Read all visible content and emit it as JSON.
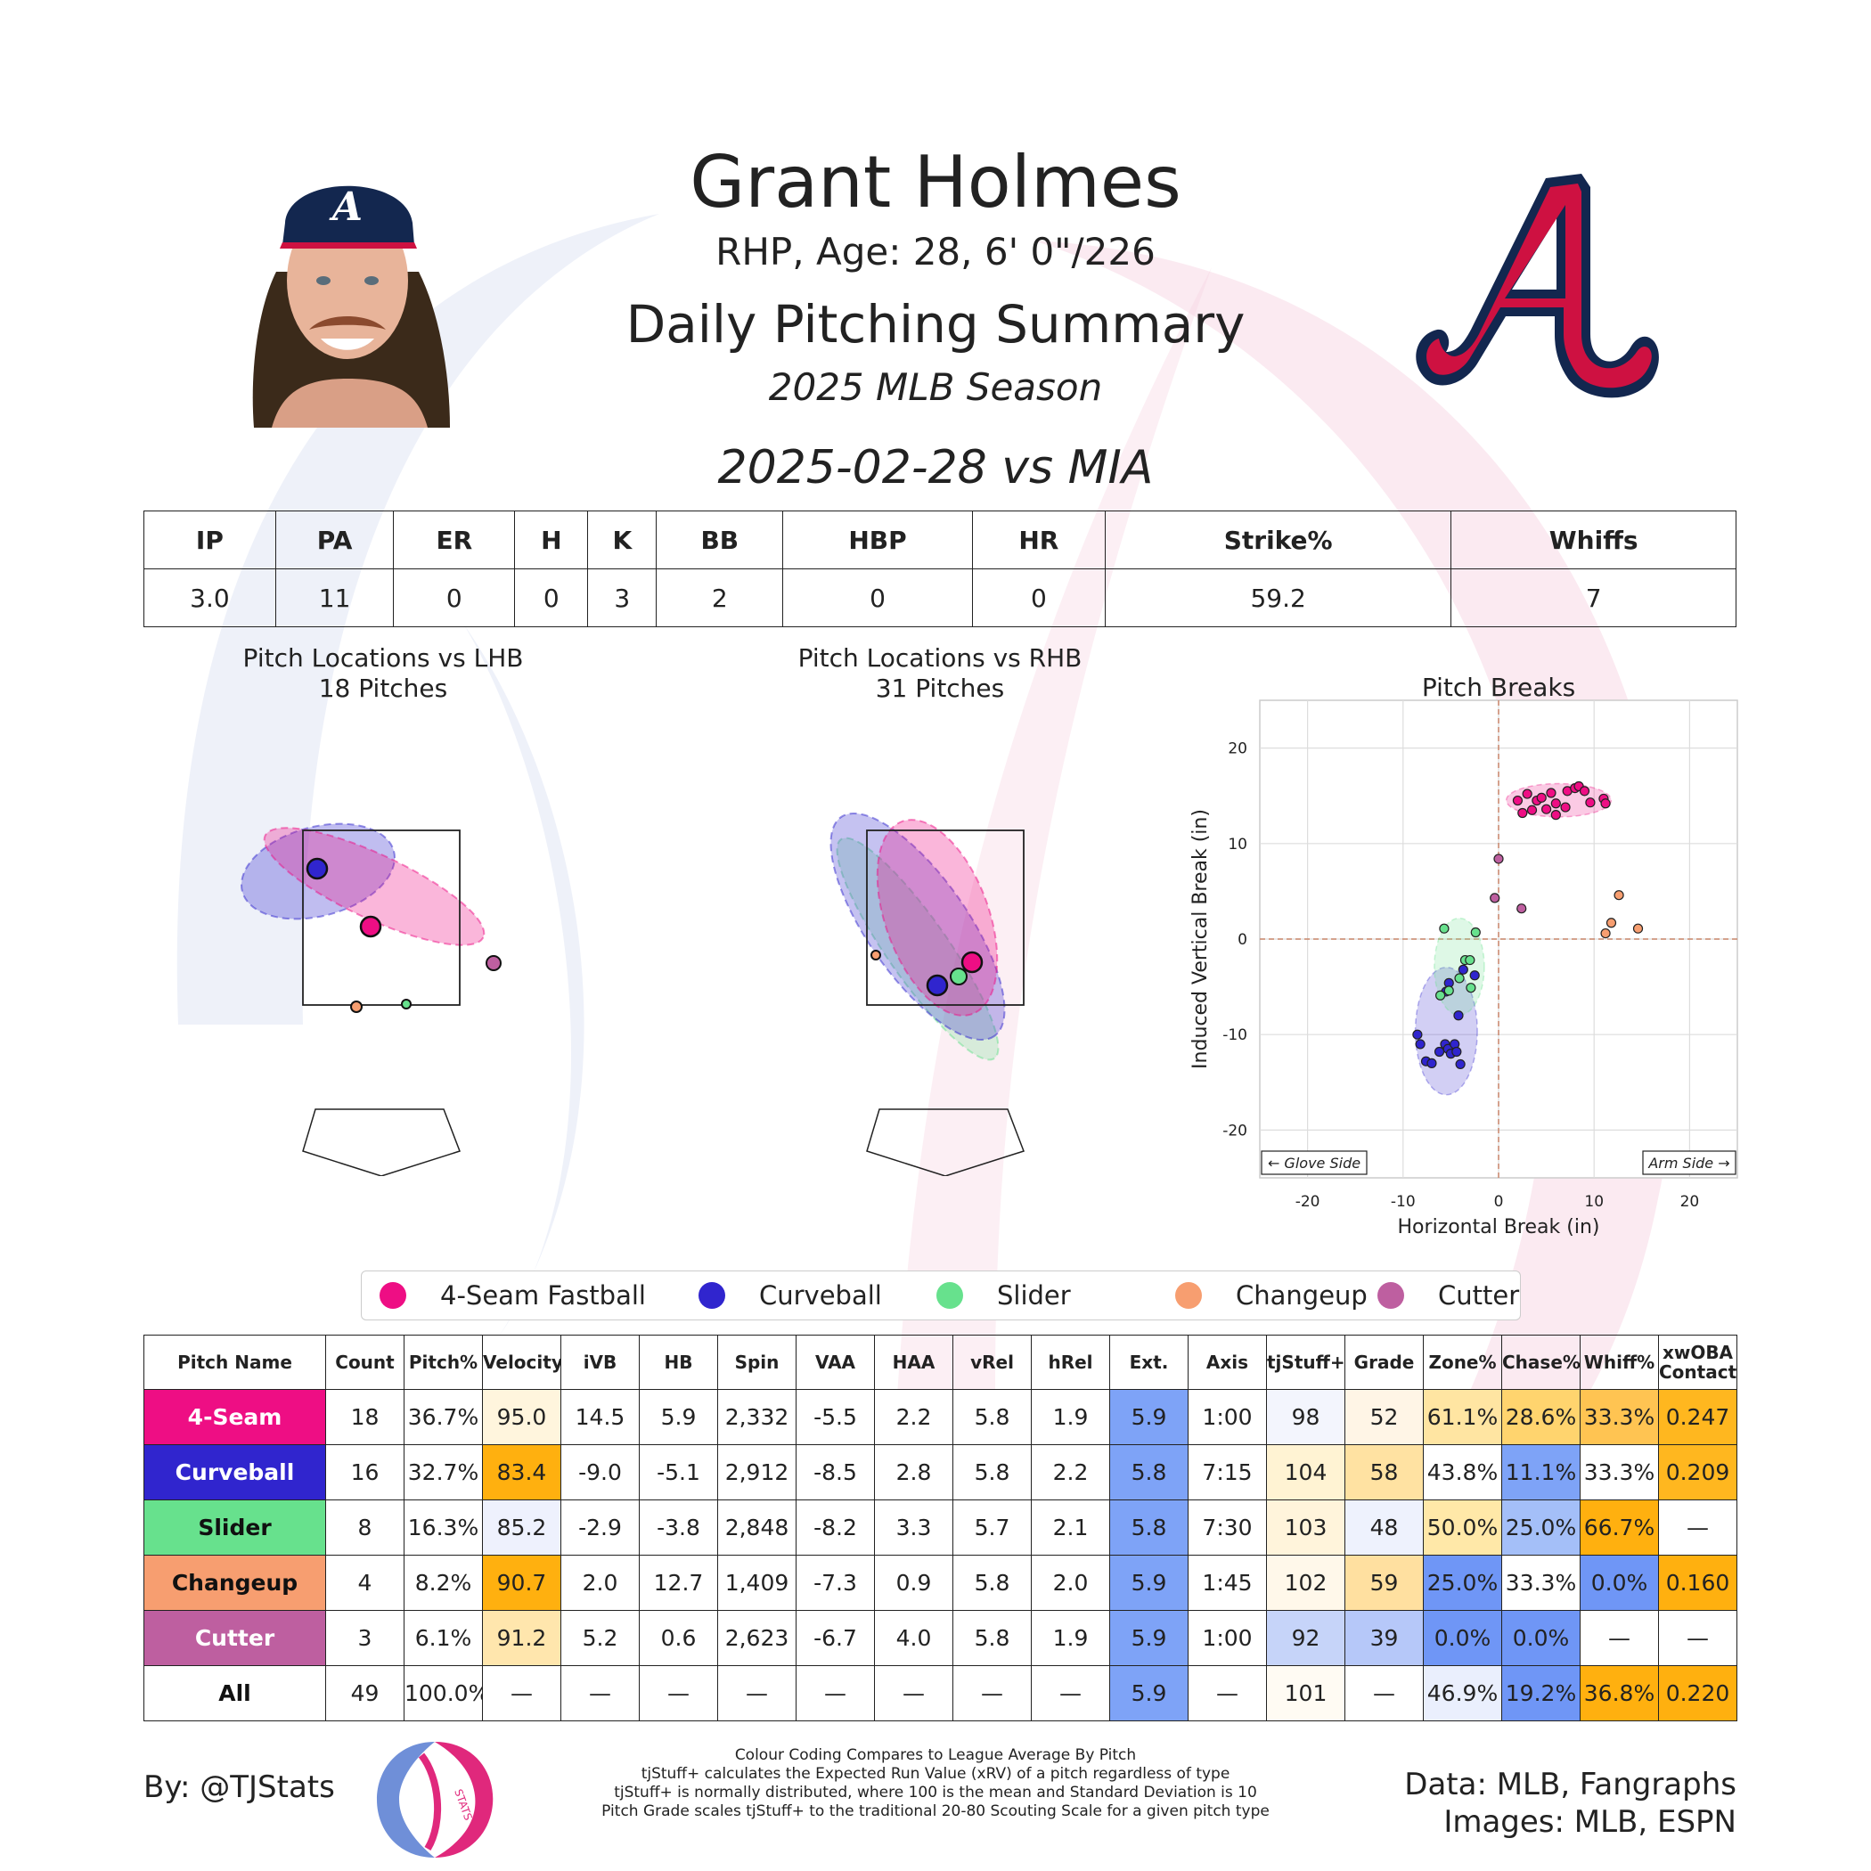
{
  "header": {
    "name": "Grant Holmes",
    "bio": "RHP, Age: 28, 6' 0\"/226",
    "subtitle": "Daily Pitching Summary",
    "season": "2025 MLB Season",
    "game": "2025-02-28 vs MIA"
  },
  "colors": {
    "fastball": "#ee0e84",
    "curveball": "#3025ce",
    "slider": "#67e18d",
    "changeup": "#f79e70",
    "cutter": "#be5fa0",
    "braves_red": "#ce1141",
    "braves_navy": "#13274f"
  },
  "stat_line": {
    "headers": [
      "IP",
      "PA",
      "ER",
      "H",
      "K",
      "BB",
      "HBP",
      "HR",
      "Strike%",
      "Whiffs"
    ],
    "values": [
      "3.0",
      "11",
      "0",
      "0",
      "3",
      "2",
      "0",
      "0",
      "59.2",
      "7"
    ]
  },
  "plots": {
    "lhb_title": "Pitch Locations vs LHB",
    "lhb_count": "18 Pitches",
    "rhb_title": "Pitch Locations vs RHB",
    "rhb_count": "31 Pitches",
    "breaks_title": "Pitch Breaks"
  },
  "chart_data": {
    "type": "scatter",
    "title": "Pitch Breaks",
    "xlabel": "Horizontal Break (in)",
    "ylabel": "Induced Vertical Break (in)",
    "xlim": [
      -25,
      25
    ],
    "ylim": [
      -25,
      25
    ],
    "xticks": [
      -20,
      -10,
      0,
      10,
      20
    ],
    "yticks": [
      -20,
      -10,
      0,
      10,
      20
    ],
    "grid": true,
    "annotations": [
      "← Glove Side",
      "Arm Side →"
    ],
    "series": [
      {
        "name": "4-Seam Fastball",
        "color": "#ee0e84",
        "points": [
          [
            2,
            14.5
          ],
          [
            2.5,
            13.2
          ],
          [
            3,
            15.2
          ],
          [
            3.5,
            13.5
          ],
          [
            4,
            14.5
          ],
          [
            4.5,
            14.8
          ],
          [
            5,
            13.6
          ],
          [
            5.5,
            15.3
          ],
          [
            6,
            14.2
          ],
          [
            6,
            13.0
          ],
          [
            7,
            13.8
          ],
          [
            7.2,
            15.5
          ],
          [
            8,
            15.8
          ],
          [
            8.4,
            16.0
          ],
          [
            9,
            15.5
          ],
          [
            9.6,
            14.3
          ],
          [
            11,
            14.7
          ],
          [
            11.2,
            14.2
          ]
        ]
      },
      {
        "name": "Curveball",
        "color": "#3025ce",
        "points": [
          [
            -8.5,
            -10
          ],
          [
            -8.2,
            -11
          ],
          [
            -7.6,
            -12.8
          ],
          [
            -7,
            -13
          ],
          [
            -6.2,
            -11.8
          ],
          [
            -5.6,
            -11
          ],
          [
            -5.3,
            -11.5
          ],
          [
            -5,
            -12
          ],
          [
            -4.6,
            -11
          ],
          [
            -4.4,
            -11.8
          ],
          [
            -4,
            -13.1
          ],
          [
            -5.5,
            -5.5
          ],
          [
            -5.2,
            -4.6
          ],
          [
            -4.2,
            -8
          ],
          [
            -3.7,
            -3.2
          ],
          [
            -2.5,
            -3.8
          ]
        ]
      },
      {
        "name": "Slider",
        "color": "#67e18d",
        "points": [
          [
            -5.7,
            1.1
          ],
          [
            -6.1,
            -5.9
          ],
          [
            -5.2,
            -5.4
          ],
          [
            -4.1,
            -4.1
          ],
          [
            -3.5,
            -2.2
          ],
          [
            -3,
            -2.2
          ],
          [
            -2.9,
            -5.1
          ],
          [
            -2.4,
            0.7
          ]
        ]
      },
      {
        "name": "Changeup",
        "color": "#f79e70",
        "points": [
          [
            11.2,
            0.6
          ],
          [
            11.8,
            1.7
          ],
          [
            12.6,
            4.6
          ],
          [
            14.6,
            1.1
          ]
        ]
      },
      {
        "name": "Cutter",
        "color": "#be5fa0",
        "points": [
          [
            -0.4,
            4.3
          ],
          [
            0,
            8.4
          ],
          [
            2.4,
            3.2
          ]
        ]
      }
    ]
  },
  "legend": [
    "4-Seam Fastball",
    "Curveball",
    "Slider",
    "Changeup",
    "Cutter"
  ],
  "pitch_table": {
    "headers": [
      "Pitch Name",
      "Count",
      "Pitch%",
      "Velocity",
      "iVB",
      "HB",
      "Spin",
      "VAA",
      "HAA",
      "vRel",
      "hRel",
      "Ext.",
      "Axis",
      "tjStuff+",
      "Grade",
      "Zone%",
      "Chase%",
      "Whiff%",
      "xwOBA Contact"
    ],
    "rows": [
      {
        "name": "4-Seam",
        "bg": "#ee0e84",
        "fg": "#ffffff",
        "cells": [
          "18",
          "36.7%",
          "95.0",
          "14.5",
          "5.9",
          "2,332",
          "-5.5",
          "2.2",
          "5.8",
          "1.9",
          "5.9",
          "1:00",
          "98",
          "52",
          "61.1%",
          "28.6%",
          "33.3%",
          "0.247"
        ],
        "cell_bg": [
          "#fff",
          "#fff",
          "#fff5dd",
          "#fff",
          "#fff",
          "#fff",
          "#fff",
          "#fff",
          "#fff",
          "#fff",
          "#7ea3f7",
          "#fff",
          "#f3f5fd",
          "#fff5e6",
          "#ffe5a2",
          "#ffd46e",
          "#ffc452",
          "#ffb71f"
        ]
      },
      {
        "name": "Curveball",
        "bg": "#3025ce",
        "fg": "#ffffff",
        "cells": [
          "16",
          "32.7%",
          "83.4",
          "-9.0",
          "-5.1",
          "2,912",
          "-8.5",
          "2.8",
          "5.8",
          "2.2",
          "5.8",
          "7:15",
          "104",
          "58",
          "43.8%",
          "11.1%",
          "33.3%",
          "0.209"
        ],
        "cell_bg": [
          "#fff",
          "#fff",
          "#ffb00f",
          "#fff",
          "#fff",
          "#fff",
          "#fff",
          "#fff",
          "#fff",
          "#fff",
          "#7ea3f7",
          "#fff",
          "#fff3d3",
          "#ffe2a2",
          "#fff",
          "#7ea3f7",
          "#fff",
          "#ffb71f"
        ]
      },
      {
        "name": "Slider",
        "bg": "#67e18d",
        "fg": "#111111",
        "cells": [
          "8",
          "16.3%",
          "85.2",
          "-2.9",
          "-3.8",
          "2,848",
          "-8.2",
          "3.3",
          "5.7",
          "2.1",
          "5.8",
          "7:30",
          "103",
          "48",
          "50.0%",
          "25.0%",
          "66.7%",
          "—"
        ],
        "cell_bg": [
          "#fff",
          "#fff",
          "#eef1fd",
          "#fff",
          "#fff",
          "#fff",
          "#fff",
          "#fff",
          "#fff",
          "#fff",
          "#7ea3f7",
          "#fff",
          "#fff4db",
          "#eef2fd",
          "#ffe8a8",
          "#a4bff8",
          "#ffb00f",
          "#fff"
        ]
      },
      {
        "name": "Changeup",
        "bg": "#f79e70",
        "fg": "#111111",
        "cells": [
          "4",
          "8.2%",
          "90.7",
          "2.0",
          "12.7",
          "1,409",
          "-7.3",
          "0.9",
          "5.8",
          "2.0",
          "5.9",
          "1:45",
          "102",
          "59",
          "25.0%",
          "33.3%",
          "0.0%",
          "0.160"
        ],
        "cell_bg": [
          "#fff",
          "#fff",
          "#ffb00f",
          "#fff",
          "#fff",
          "#fff",
          "#fff",
          "#fff",
          "#fff",
          "#fff",
          "#7ea3f7",
          "#fff",
          "#fff8ea",
          "#ffe0a0",
          "#6f96f6",
          "#fff",
          "#6f96f6",
          "#ffb00f"
        ]
      },
      {
        "name": "Cutter",
        "bg": "#be5fa0",
        "fg": "#ffffff",
        "cells": [
          "3",
          "6.1%",
          "91.2",
          "5.2",
          "0.6",
          "2,623",
          "-6.7",
          "4.0",
          "5.8",
          "1.9",
          "5.9",
          "1:00",
          "92",
          "39",
          "0.0%",
          "0.0%",
          "—",
          "—"
        ],
        "cell_bg": [
          "#fff",
          "#fff",
          "#ffe6ad",
          "#fff",
          "#fff",
          "#fff",
          "#fff",
          "#fff",
          "#fff",
          "#fff",
          "#7ea3f7",
          "#fff",
          "#c6d4f9",
          "#b6c8f9",
          "#6f96f6",
          "#6f96f6",
          "#fff",
          "#fff"
        ]
      },
      {
        "name": "All",
        "bg": "#ffffff",
        "fg": "#111111",
        "cells": [
          "49",
          "100.0%",
          "—",
          "—",
          "—",
          "—",
          "—",
          "—",
          "—",
          "—",
          "5.9",
          "—",
          "101",
          "—",
          "46.9%",
          "19.2%",
          "36.8%",
          "0.220"
        ],
        "cell_bg": [
          "#fff",
          "#fff",
          "#fff",
          "#fff",
          "#fff",
          "#fff",
          "#fff",
          "#fff",
          "#fff",
          "#fff",
          "#7ea3f7",
          "#fff",
          "#fffbf3",
          "#fff",
          "#eaeffd",
          "#6f96f6",
          "#ffb00f",
          "#ffb00f"
        ]
      }
    ]
  },
  "footer": {
    "author": "By: @TJStats",
    "note1": "Colour Coding Compares to League Average By Pitch",
    "note2": "tjStuff+ calculates the Expected Run Value (xRV) of a pitch regardless of type",
    "note3": "tjStuff+ is normally distributed, where 100 is the mean and Standard Deviation is 10",
    "note4": "Pitch Grade scales tjStuff+ to the traditional 20-80 Scouting Scale for a given pitch type",
    "data_source": "Data: MLB, Fangraphs",
    "image_source": "Images: MLB, ESPN",
    "logo_text": "STATS"
  }
}
